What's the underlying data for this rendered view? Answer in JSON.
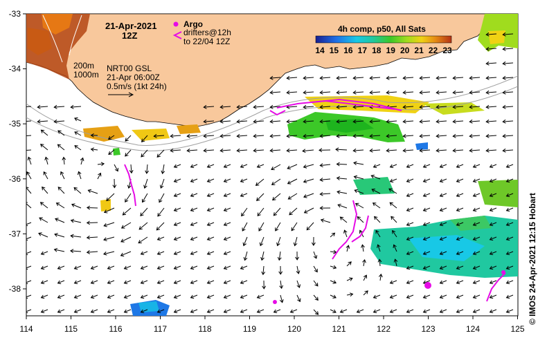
{
  "map": {
    "date": "21-Apr-2021",
    "time": "12Z",
    "product": "4h comp, p50, All Sats",
    "sst_scale": [
      "14",
      "15",
      "16",
      "17",
      "18",
      "19",
      "20",
      "21",
      "22",
      "23"
    ],
    "colors": {
      "land": "#f8c89c",
      "argo": "#e60be6",
      "drifter": "#e60be6",
      "contour": "#a0a0a0",
      "arrow": "#000000"
    },
    "legend": {
      "argo_label": "Argo",
      "drifters_label": "drifters@12h",
      "drifters_until": "to 22/04 12Z"
    },
    "contours": {
      "shallow": "200m",
      "deep": "1000m"
    },
    "analysis": {
      "source": "NRT00 GSL",
      "time": "21-Apr 06:00Z",
      "scale": "0.5m/s (1kt 24h)"
    },
    "x_axis": {
      "ticks": [
        "114",
        "115",
        "116",
        "117",
        "118",
        "119",
        "120",
        "121",
        "122",
        "123",
        "124",
        "125"
      ]
    },
    "y_axis": {
      "ticks": [
        "-33",
        "-34",
        "-35",
        "-36",
        "-37",
        "-38"
      ]
    },
    "credit": "© IMOS 24-Apr-2021 12:15 Hobart"
  }
}
